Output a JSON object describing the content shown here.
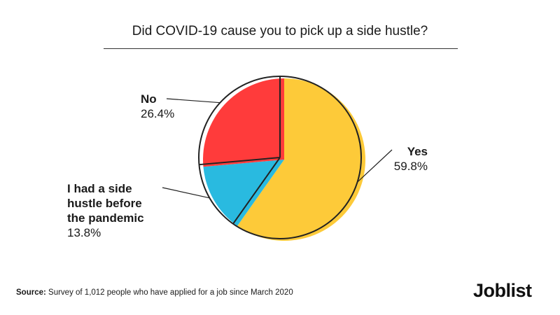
{
  "chart_data": {
    "type": "pie",
    "title": "Did COVID-19 cause you to pick up a side hustle?",
    "slices": [
      {
        "label": "Yes",
        "value": 59.8,
        "display": "59.8%",
        "color": "#fdca39"
      },
      {
        "label": "I  had a side hustle before the pandemic",
        "value": 13.8,
        "display": "13.8%",
        "color": "#29bae0"
      },
      {
        "label": "No",
        "value": 26.4,
        "display": "26.4%",
        "color": "#ff3b3b"
      }
    ]
  },
  "source": {
    "prefix": "Source:",
    "text": " Survey of 1,012 people who have applied for a job since March 2020"
  },
  "brand": {
    "logo_text": "Joblist"
  }
}
